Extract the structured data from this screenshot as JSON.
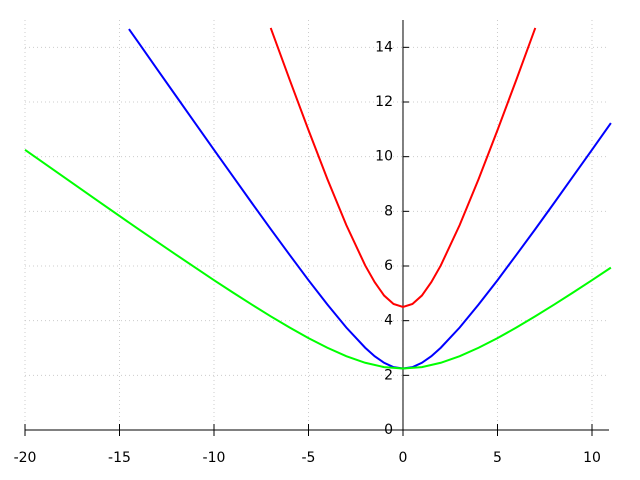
{
  "chart_data": {
    "type": "line",
    "xlim": [
      -20,
      10.9
    ],
    "ylim": [
      0,
      15
    ],
    "xticks": [
      -20,
      -15,
      -10,
      -5,
      0,
      5,
      10
    ],
    "yticks": [
      0,
      2,
      4,
      6,
      8,
      10,
      12,
      14
    ],
    "grid": true,
    "series": [
      {
        "color": "#ff0000",
        "x": [
          -7,
          -6,
          -5,
          -4,
          -3,
          -2,
          -1.5,
          -1,
          -0.5,
          0,
          0.5,
          1,
          1.5,
          2,
          3,
          4,
          5,
          6,
          7
        ],
        "values": [
          14.71,
          12.82,
          10.97,
          9.18,
          7.5,
          6.02,
          5.41,
          4.92,
          4.61,
          4.5,
          4.61,
          4.92,
          5.41,
          6.02,
          7.5,
          9.18,
          10.97,
          12.82,
          14.71
        ]
      },
      {
        "color": "#0000ff",
        "x": [
          -14.5,
          -14,
          -13,
          -12,
          -11,
          -10,
          -9,
          -8,
          -7,
          -6,
          -5,
          -4,
          -3,
          -2,
          -1.5,
          -1,
          -0.5,
          0,
          0.5,
          1,
          1.5,
          2,
          3,
          4,
          5,
          6,
          7,
          8,
          9,
          10,
          11
        ],
        "values": [
          14.67,
          14.18,
          13.19,
          12.21,
          11.23,
          10.25,
          9.28,
          8.31,
          7.35,
          6.41,
          5.48,
          4.59,
          3.75,
          3.01,
          2.7,
          2.46,
          2.3,
          2.25,
          2.3,
          2.46,
          2.7,
          3.01,
          3.75,
          4.59,
          5.48,
          6.41,
          7.35,
          8.31,
          9.28,
          10.25,
          11.23
        ]
      },
      {
        "color": "#00ff00",
        "x": [
          -20,
          -18,
          -16,
          -14,
          -12,
          -10,
          -9,
          -8,
          -7,
          -6,
          -5,
          -4,
          -3,
          -2,
          -1,
          0,
          1,
          2,
          3,
          4,
          5,
          6,
          7,
          8,
          9,
          10,
          11
        ],
        "values": [
          10.25,
          9.28,
          8.31,
          7.35,
          6.41,
          5.48,
          5.03,
          4.59,
          4.16,
          3.75,
          3.36,
          3.01,
          2.7,
          2.46,
          2.3,
          2.25,
          2.3,
          2.46,
          2.7,
          3.01,
          3.36,
          3.75,
          4.16,
          4.59,
          5.03,
          5.48,
          5.94
        ]
      }
    ]
  }
}
